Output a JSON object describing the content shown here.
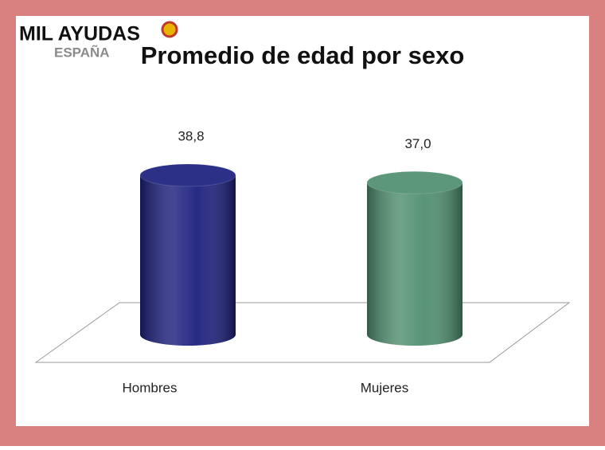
{
  "watermark": {
    "brand": "MIL AYUDAS",
    "country": "ESPAÑA"
  },
  "chart_data": {
    "type": "cylinder",
    "title": "Promedio de edad por sexo",
    "categories": [
      "Hombres",
      "Mujeres"
    ],
    "values": [
      38.8,
      37.0
    ],
    "value_labels": [
      "38,8",
      "37,0"
    ],
    "colors": [
      "#1b1f7d",
      "#4f8f6e"
    ]
  }
}
